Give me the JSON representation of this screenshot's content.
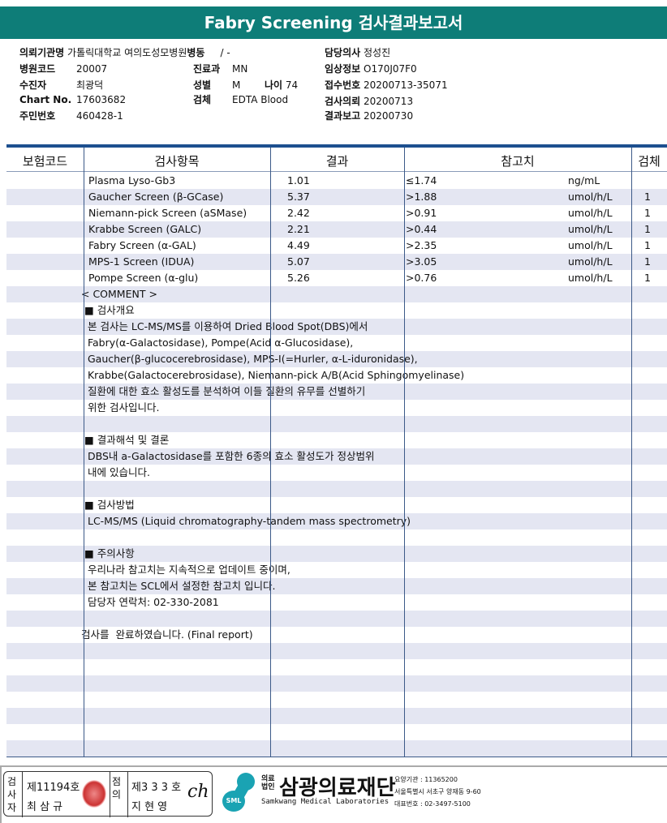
{
  "title": "Fabry Screening 검사결과보고서",
  "info": {
    "institution_label": "의뢰기관명",
    "institution": "가톨릭대학교 여의도성모병원",
    "ward_label": "병동",
    "ward": "/ -",
    "doctor_label": "담당의사",
    "doctor": "정성진",
    "hospital_code_label": "병원코드",
    "hospital_code": "20007",
    "dept_label": "진료과",
    "dept": "MN",
    "clinical_label": "임상정보",
    "clinical": "O170J07F0",
    "patient_label": "수진자",
    "patient": "최광덕",
    "sex_label": "성별",
    "sex": "M",
    "age_label": "나이",
    "age": "74",
    "receipt_label": "접수번호",
    "receipt": "20200713-35071",
    "chart_label": "Chart No.",
    "chart": "17603682",
    "specimen_label": "검체",
    "specimen": "EDTA Blood",
    "request_label": "검사의뢰",
    "request": "20200713",
    "id_label": "주민번호",
    "id": "460428-1",
    "report_label": "결과보고",
    "report": "20200730"
  },
  "table": {
    "headers": [
      "보험코드",
      "검사항목",
      "결과",
      "참고치",
      "검체"
    ],
    "rows": [
      {
        "test": "Plasma Lyso-Gb3",
        "result": "1.01",
        "ref": "≤1.74",
        "unit": "ng/mL",
        "specimen": ""
      },
      {
        "test": "Gaucher Screen (β-GCase)",
        "result": "5.37",
        "ref": ">1.88",
        "unit": "umol/h/L",
        "specimen": "1"
      },
      {
        "test": "Niemann-pick Screen (aSMase)",
        "result": "2.42",
        "ref": ">0.91",
        "unit": "umol/h/L",
        "specimen": "1"
      },
      {
        "test": "Krabbe Screen (GALC)",
        "result": "2.21",
        "ref": ">0.44",
        "unit": "umol/h/L",
        "specimen": "1"
      },
      {
        "test": "Fabry Screen (α-GAL)",
        "result": "4.49",
        "ref": ">2.35",
        "unit": "umol/h/L",
        "specimen": "1"
      },
      {
        "test": "MPS-1 Screen (IDUA)",
        "result": "5.07",
        "ref": ">3.05",
        "unit": "umol/h/L",
        "specimen": "1"
      },
      {
        "test": "Pompe Screen (α-glu)",
        "result": "5.26",
        "ref": ">0.76",
        "unit": "umol/h/L",
        "specimen": "1"
      }
    ],
    "comment_lines": [
      "< COMMENT >",
      "■ 검사개요",
      " 본 검사는 LC-MS/MS를 이용하여 Dried Blood Spot(DBS)에서",
      " Fabry(α-Galactosidase), Pompe(Acid α-Glucosidase),",
      " Gaucher(β-glucocerebrosidase), MPS-I(=Hurler, α-L-iduronidase),",
      " Krabbe(Galactocerebrosidase), Niemann-pick A/B(Acid Sphingomyelinase)",
      " 질환에 대한 효소 활성도를 분석하여 이들 질환의 유무를 선별하기",
      " 위한 검사입니다.",
      "",
      "■ 결과해석 및 결론",
      " DBS내 a-Galactosidase를 포함한 6종의 효소 활성도가 정상범위",
      " 내에 있습니다.",
      "",
      "■ 검사방법",
      " LC-MS/MS (Liquid chromatography-tandem mass spectrometry)",
      "",
      "■ 주의사항",
      " 우리나라 참고치는 지속적으로 업데이트 중이며,",
      " 본 참고치는 SCL에서 설정한 참고치 입니다.",
      " 담당자 연락처: 02-330-2081",
      "",
      "검사를  완료하였습니다. (Final report)"
    ]
  },
  "footer": {
    "tester_label": "검사자",
    "tester_no": "제11194호",
    "tester_name": "최 삼 규",
    "confirm_label": "점의",
    "confirm_no": "제3 3 3 호",
    "confirm_name": "지 현 영",
    "logo_small": "SML",
    "org_type": "의료법인",
    "org_name": "삼광의료재단",
    "org_en": "Samkwang Medical Laboratories",
    "code": "요양기관 : 11365200",
    "address": "서울특별시 서초구 양재동 9-60",
    "phone": "대표번호 : 02-3497-5100",
    "brand_color": "#1aa3b3"
  }
}
